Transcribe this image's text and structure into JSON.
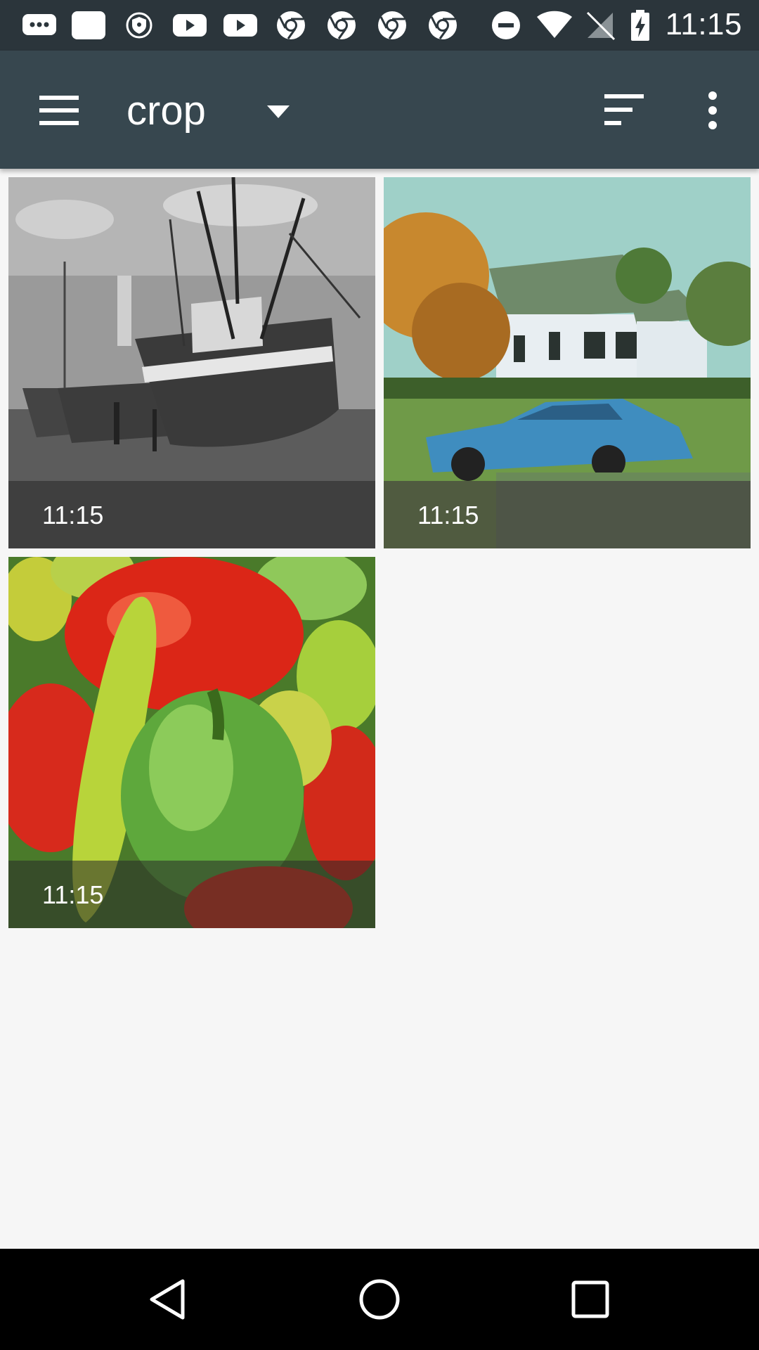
{
  "status_bar": {
    "time": "11:15",
    "icons": [
      "chat-icon",
      "app-icon",
      "vpn-icon",
      "youtube-icon",
      "youtube-icon",
      "chrome-icon",
      "chrome-icon",
      "chrome-icon",
      "chrome-icon",
      "do-not-disturb-icon",
      "wifi-icon",
      "no-signal-icon",
      "battery-charging-icon"
    ]
  },
  "app_bar": {
    "title": "crop",
    "icons": [
      "menu-icon",
      "dropdown-icon",
      "sort-icon",
      "more-vert-icon"
    ]
  },
  "grid": {
    "items": [
      {
        "time": "11:15",
        "subject": "boats"
      },
      {
        "time": "11:15",
        "subject": "house-car"
      },
      {
        "time": "11:15",
        "subject": "peppers"
      }
    ]
  },
  "nav_bar": {
    "icons": [
      "back-icon",
      "home-icon",
      "recents-icon"
    ]
  },
  "colors": {
    "status_bar": "#2b353b",
    "app_bar": "#37474f",
    "background": "#f6f6f6"
  }
}
